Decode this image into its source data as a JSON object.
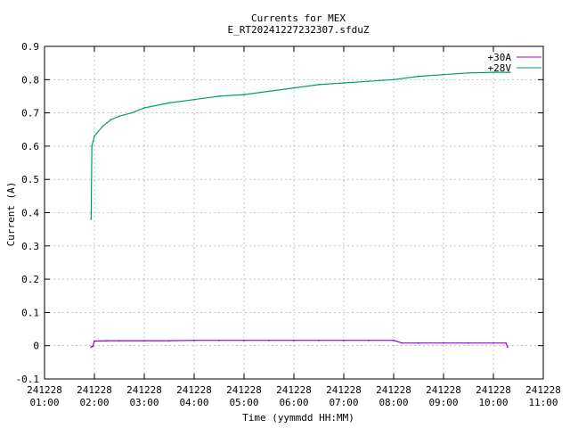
{
  "chart_data": {
    "type": "line",
    "title": "Currents for MEX",
    "subtitle": "E_RT20241227232307.sfduZ",
    "xlabel": "Time (yymmdd HH:MM)",
    "ylabel": "Current (A)",
    "ylim": [
      -0.1,
      0.9
    ],
    "y_ticks": [
      -0.1,
      0,
      0.1,
      0.2,
      0.3,
      0.4,
      0.5,
      0.6,
      0.7,
      0.8,
      0.9
    ],
    "y_tick_labels": [
      "-0.1",
      "0",
      "0.1",
      "0.2",
      "0.3",
      "0.4",
      "0.5",
      "0.6",
      "0.7",
      "0.8",
      "0.9"
    ],
    "xlim": [
      "241228 01:00",
      "241228 11:00"
    ],
    "x_tick_labels": [
      {
        "date": "241228",
        "time": "01:00"
      },
      {
        "date": "241228",
        "time": "02:00"
      },
      {
        "date": "241228",
        "time": "03:00"
      },
      {
        "date": "241228",
        "time": "04:00"
      },
      {
        "date": "241228",
        "time": "05:00"
      },
      {
        "date": "241228",
        "time": "06:00"
      },
      {
        "date": "241228",
        "time": "07:00"
      },
      {
        "date": "241228",
        "time": "08:00"
      },
      {
        "date": "241228",
        "time": "09:00"
      },
      {
        "date": "241228",
        "time": "10:00"
      },
      {
        "date": "241228",
        "time": "11:00"
      }
    ],
    "grid": true,
    "legend_position": "top-right",
    "series": [
      {
        "name": "+30A",
        "color": "#9400d3",
        "x": [
          "241228 01:56",
          "241228 01:58",
          "241228 02:00",
          "241228 02:15",
          "241228 02:30",
          "241228 03:00",
          "241228 03:30",
          "241228 04:00",
          "241228 04:30",
          "241228 05:00",
          "241228 05:30",
          "241228 06:00",
          "241228 06:30",
          "241228 07:00",
          "241228 07:30",
          "241228 08:00",
          "241228 08:10",
          "241228 08:30",
          "241228 09:00",
          "241228 09:30",
          "241228 10:00",
          "241228 10:15",
          "241228 10:17"
        ],
        "y": [
          -0.004,
          -0.002,
          0.014,
          0.015,
          0.015,
          0.015,
          0.015,
          0.016,
          0.016,
          0.016,
          0.016,
          0.016,
          0.016,
          0.016,
          0.016,
          0.016,
          0.008,
          0.008,
          0.008,
          0.008,
          0.008,
          0.008,
          -0.004
        ]
      },
      {
        "name": "+28V",
        "color": "#009e73",
        "x": [
          "241228 01:56",
          "241228 01:57",
          "241228 02:00",
          "241228 02:10",
          "241228 02:20",
          "241228 02:30",
          "241228 02:45",
          "241228 03:00",
          "241228 03:30",
          "241228 04:00",
          "241228 04:30",
          "241228 05:00",
          "241228 05:30",
          "241228 06:00",
          "241228 06:30",
          "241228 07:00",
          "241228 07:30",
          "241228 08:00",
          "241228 08:30",
          "241228 09:00",
          "241228 09:30",
          "241228 10:00",
          "241228 10:20"
        ],
        "y": [
          0.38,
          0.6,
          0.63,
          0.66,
          0.68,
          0.69,
          0.7,
          0.715,
          0.73,
          0.74,
          0.75,
          0.755,
          0.765,
          0.775,
          0.785,
          0.79,
          0.795,
          0.8,
          0.81,
          0.815,
          0.82,
          0.822,
          0.822
        ]
      }
    ]
  }
}
